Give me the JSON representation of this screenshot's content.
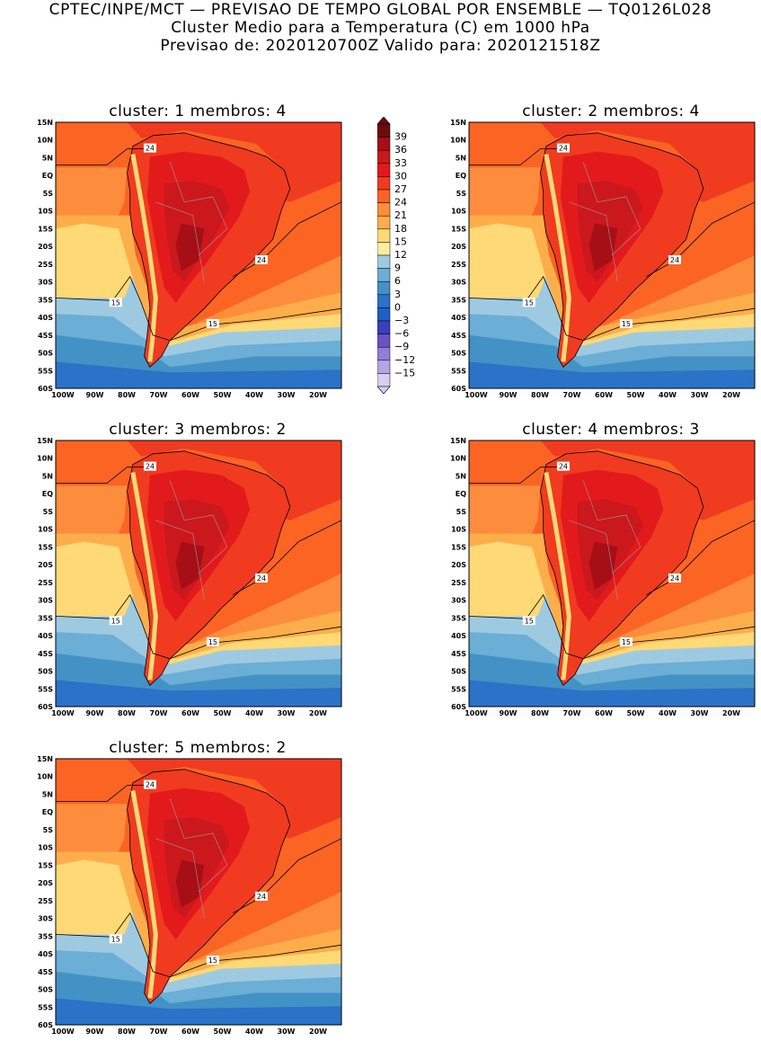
{
  "header": {
    "line1": "CPTEC/INPE/MCT — PREVISAO DE TEMPO GLOBAL POR ENSEMBLE — TQ0126L028",
    "line2": "Cluster Medio para a Temperatura (C) em 1000 hPa",
    "line3": "Previsao de: 2020120700Z   Valido para: 2020121518Z"
  },
  "panels": [
    {
      "title": "cluster: 1   membros: 4",
      "contour_labels": [
        "24",
        "24",
        "15",
        "15"
      ]
    },
    {
      "title": "cluster: 2   membros: 4",
      "contour_labels": [
        "24",
        "24",
        "15",
        "15"
      ]
    },
    {
      "title": "cluster: 3   membros: 2",
      "contour_labels": [
        "24",
        "24",
        "15",
        "15"
      ]
    },
    {
      "title": "cluster: 4   membros: 3",
      "contour_labels": [
        "24",
        "24",
        "15",
        "15"
      ]
    },
    {
      "title": "cluster: 5   membros: 2",
      "contour_labels": [
        "24",
        "24",
        "15",
        "15"
      ]
    }
  ],
  "lat_labels": [
    "15N",
    "10N",
    "5N",
    "EQ",
    "5S",
    "10S",
    "15S",
    "20S",
    "25S",
    "30S",
    "35S",
    "40S",
    "45S",
    "50S",
    "55S",
    "60S"
  ],
  "lon_labels": [
    "100W",
    "90W",
    "80W",
    "70W",
    "60W",
    "50W",
    "40W",
    "30W",
    "20W"
  ],
  "colorbar": {
    "labels": [
      "39",
      "36",
      "33",
      "30",
      "27",
      "24",
      "21",
      "18",
      "15",
      "12",
      "9",
      "6",
      "3",
      "0",
      "−3",
      "−6",
      "−9",
      "−12",
      "−15"
    ],
    "colors": [
      "#6b0d0d",
      "#a50f15",
      "#cb181d",
      "#e31a1c",
      "#f03b20",
      "#fc6424",
      "#fd8d3c",
      "#fdae4b",
      "#fed976",
      "#ffeda0",
      "#9ecae1",
      "#6baed6",
      "#4292c6",
      "#2b72c8",
      "#1f5fc4",
      "#3b3fbf",
      "#6a51c4",
      "#8f7fd6",
      "#b3a6e3",
      "#d8cdf2"
    ]
  }
}
